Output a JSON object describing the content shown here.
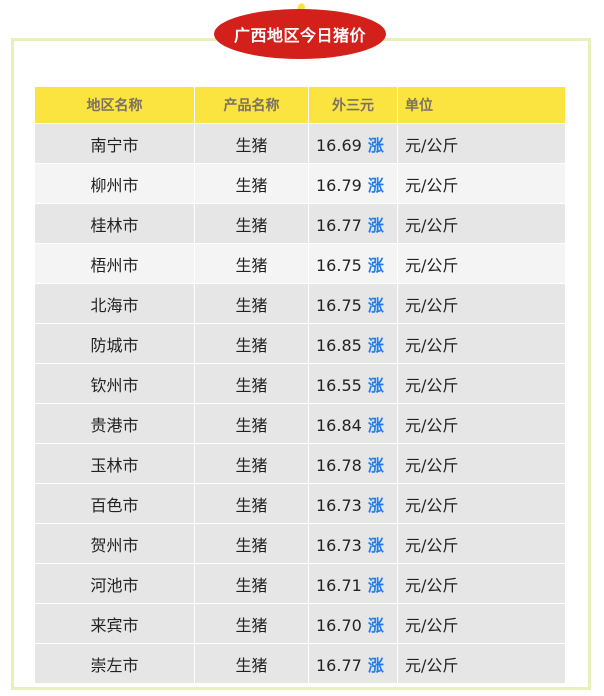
{
  "title": "广西地区今日猪价",
  "colors": {
    "header_bg": "#fbe43f",
    "badge": "#d4201a",
    "rise": "#1e7df0",
    "frame": "#e9f0bb"
  },
  "table": {
    "headers": [
      "地区名称",
      "产品名称",
      "外三元",
      "单位"
    ],
    "rows": [
      {
        "region": "南宁市",
        "product": "生猪",
        "price": "16.69",
        "trend": "涨",
        "unit": "元/公斤"
      },
      {
        "region": "柳州市",
        "product": "生猪",
        "price": "16.79",
        "trend": "涨",
        "unit": "元/公斤"
      },
      {
        "region": "桂林市",
        "product": "生猪",
        "price": "16.77",
        "trend": "涨",
        "unit": "元/公斤"
      },
      {
        "region": "梧州市",
        "product": "生猪",
        "price": "16.75",
        "trend": "涨",
        "unit": "元/公斤"
      },
      {
        "region": "北海市",
        "product": "生猪",
        "price": "16.75",
        "trend": "涨",
        "unit": "元/公斤"
      },
      {
        "region": "防城市",
        "product": "生猪",
        "price": "16.85",
        "trend": "涨",
        "unit": "元/公斤"
      },
      {
        "region": "钦州市",
        "product": "生猪",
        "price": "16.55",
        "trend": "涨",
        "unit": "元/公斤"
      },
      {
        "region": "贵港市",
        "product": "生猪",
        "price": "16.84",
        "trend": "涨",
        "unit": "元/公斤"
      },
      {
        "region": "玉林市",
        "product": "生猪",
        "price": "16.78",
        "trend": "涨",
        "unit": "元/公斤"
      },
      {
        "region": "百色市",
        "product": "生猪",
        "price": "16.73",
        "trend": "涨",
        "unit": "元/公斤"
      },
      {
        "region": "贺州市",
        "product": "生猪",
        "price": "16.73",
        "trend": "涨",
        "unit": "元/公斤"
      },
      {
        "region": "河池市",
        "product": "生猪",
        "price": "16.71",
        "trend": "涨",
        "unit": "元/公斤"
      },
      {
        "region": "来宾市",
        "product": "生猪",
        "price": "16.70",
        "trend": "涨",
        "unit": "元/公斤"
      },
      {
        "region": "崇左市",
        "product": "生猪",
        "price": "16.77",
        "trend": "涨",
        "unit": "元/公斤"
      }
    ]
  }
}
